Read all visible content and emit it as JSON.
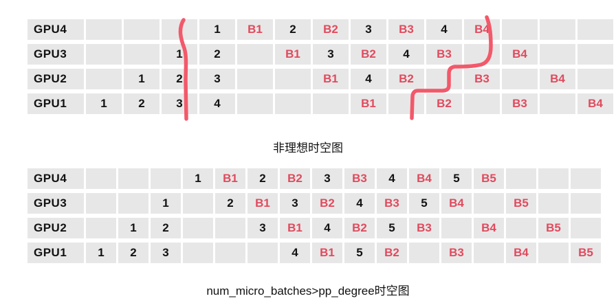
{
  "colors": {
    "page_background": "#ffffff",
    "cell_background": "#e8e7e7",
    "forward_text": "#121212",
    "backward_text": "#e04b5e",
    "annotation_stroke": "#f2596a"
  },
  "tables": [
    {
      "id": "top",
      "caption": "非理想时空图",
      "columns": 14,
      "rows": [
        {
          "label": "GPU4",
          "cells": [
            "",
            "",
            "",
            "1",
            "B1",
            "2",
            "B2",
            "3",
            "B3",
            "4",
            "B4",
            "",
            "",
            ""
          ]
        },
        {
          "label": "GPU3",
          "cells": [
            "",
            "",
            "1",
            "2",
            "",
            "B1",
            "3",
            "B2",
            "4",
            "B3",
            "",
            "B4",
            "",
            ""
          ]
        },
        {
          "label": "GPU2",
          "cells": [
            "",
            "1",
            "2",
            "3",
            "",
            "",
            "B1",
            "4",
            "B2",
            "",
            "B3",
            "",
            "B4",
            ""
          ]
        },
        {
          "label": "GPU1",
          "cells": [
            "1",
            "2",
            "3",
            "4",
            "",
            "",
            "",
            "B1",
            "",
            "B2",
            "",
            "B3",
            "",
            "B4"
          ]
        }
      ]
    },
    {
      "id": "bottom",
      "caption": "num_micro_batches>pp_degree时空图",
      "columns": 16,
      "rows": [
        {
          "label": "GPU4",
          "cells": [
            "",
            "",
            "",
            "1",
            "B1",
            "2",
            "B2",
            "3",
            "B3",
            "4",
            "B4",
            "5",
            "B5",
            "",
            "",
            ""
          ]
        },
        {
          "label": "GPU3",
          "cells": [
            "",
            "",
            "1",
            "",
            "2",
            "B1",
            "3",
            "B2",
            "4",
            "B3",
            "5",
            "B4",
            "",
            "B5",
            "",
            ""
          ]
        },
        {
          "label": "GPU2",
          "cells": [
            "",
            "1",
            "2",
            "",
            "",
            "3",
            "B1",
            "4",
            "B2",
            "5",
            "B3",
            "",
            "B4",
            "",
            "B5",
            ""
          ]
        },
        {
          "label": "GPU1",
          "cells": [
            "1",
            "2",
            "3",
            "",
            "",
            "",
            "4",
            "B1",
            "5",
            "B2",
            "",
            "B3",
            "",
            "B4",
            "",
            "B5"
          ]
        }
      ]
    }
  ],
  "annotation": {
    "description": "hand-drawn red strokes over top table marking pipeline bubble boundaries",
    "stroke_width": 5.5,
    "paths": [
      "M 267,29 C 259,42 263,57 268,70 C 272,83 270,100 270,118 L 271,173",
      "M 708,25 C 713,38 714,52 714,67 C 714,81 710,91 700,94 C 688,97 672,97 661,97 C 655,98 653,102 653,107 L 653,124 C 653,130 649,132 643,132 L 608,132 C 602,132 600,136 600,141 L 599,172"
    ]
  }
}
